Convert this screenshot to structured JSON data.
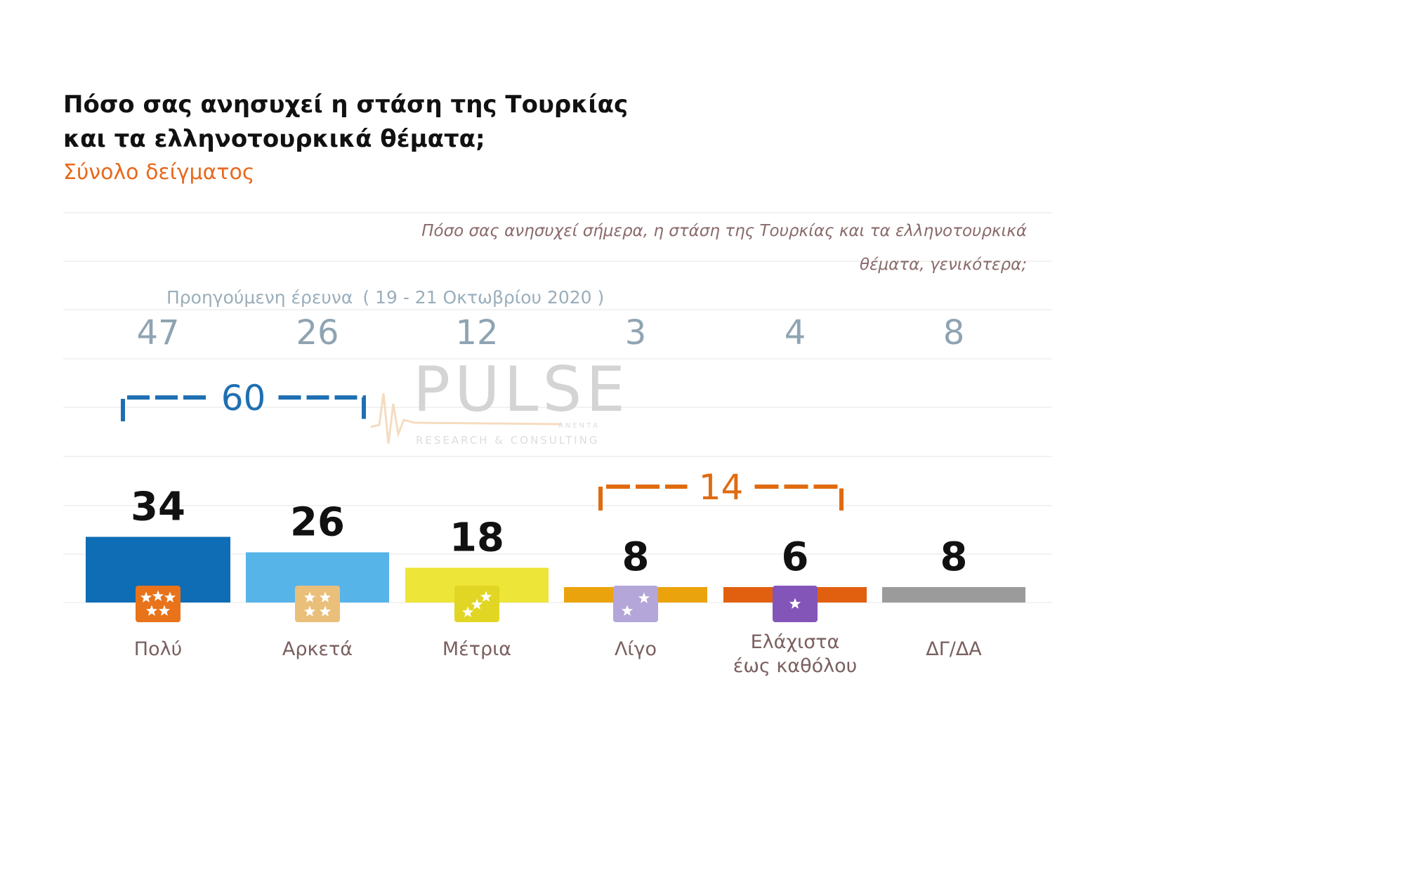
{
  "header": {
    "title_line1": "Πόσο σας ανησυχεί η στάση της Τουρκίας",
    "title_line2": "και τα ελληνοτουρκικά θέματα;",
    "subtitle": "Σύνολο δείγματος"
  },
  "question": {
    "line1": "Πόσο σας ανησυχεί σήμερα, η στάση της Τουρκίας και τα ελληνοτουρκικά",
    "line2": "θέματα, γενικότερα;"
  },
  "previous_survey": {
    "caption": "Προηγούμενη έρευνα",
    "period": "( 19 - 21 Οκτωβρίου 2020 )"
  },
  "watermark": {
    "brand": "PULSE",
    "tagline": "RESEARCH & CONSULTING",
    "small": "ΑΝΕΝΤΑ"
  },
  "groups": [
    {
      "value": "60",
      "from": 0,
      "to": 1,
      "color": "#1f6fb2"
    },
    {
      "value": "14",
      "from": 3,
      "to": 4,
      "color": "#e06b10"
    }
  ],
  "chart_data": {
    "type": "bar",
    "categories": [
      "Πολύ",
      "Αρκετά",
      "Μέτρια",
      "Λίγο",
      "Ελάχιστα έως καθόλου",
      "ΔΓ/ΔΑ"
    ],
    "category_lines": [
      [
        "Πολύ"
      ],
      [
        "Αρκετά"
      ],
      [
        "Μέτρια"
      ],
      [
        "Λίγο"
      ],
      [
        "Ελάχιστα",
        "έως καθόλου"
      ],
      [
        "ΔΓ/ΔΑ"
      ]
    ],
    "series": [
      {
        "values": [
          34,
          26,
          18,
          8,
          6,
          8
        ]
      },
      {
        "values": [
          47,
          26,
          12,
          3,
          4,
          8
        ]
      }
    ],
    "bar_colors": [
      "#0e6db5",
      "#56b4e9",
      "#ede538",
      "#eaa30c",
      "#e06010",
      "#9b9b9b"
    ],
    "badge_colors": [
      "#e8731a",
      "#eabf7a",
      "#e2d624",
      "#b4a6d8",
      "#8455b8",
      null
    ],
    "badge_icons": [
      "five-stars-icon",
      "four-stars-icon",
      "three-stars-icon",
      "two-stars-icon",
      "one-star-icon",
      null
    ]
  }
}
